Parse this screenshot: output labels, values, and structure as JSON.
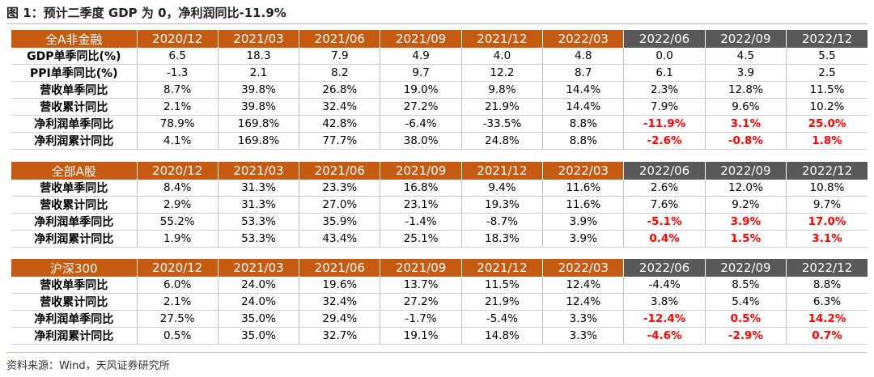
{
  "title": "图 1：预计二季度 GDP 为 0，净利润同比-11.9%",
  "source": "资料来源：Wind，天风证券研究所",
  "colors": {
    "header_actual": "#c55a11",
    "header_forecast": "#595959",
    "negative_highlight": "#ff0000"
  },
  "sections": [
    {
      "name": "全A非金融",
      "periods": [
        "2020/12",
        "2021/03",
        "2021/06",
        "2021/09",
        "2021/12",
        "2022/03",
        "2022/06",
        "2022/09",
        "2022/12"
      ],
      "rows": [
        {
          "label": "GDP单季同比(%)",
          "values": [
            "6.5",
            "18.3",
            "7.9",
            "4.9",
            "4.0",
            "4.8",
            "0.0",
            "4.5",
            "5.5"
          ]
        },
        {
          "label": "PPI单季同比(%)",
          "values": [
            "-1.3",
            "2.1",
            "8.2",
            "9.7",
            "12.2",
            "8.7",
            "6.1",
            "3.9",
            "2.5"
          ]
        },
        {
          "label": "营收单季同比",
          "values": [
            "8.7%",
            "39.8%",
            "26.8%",
            "19.0%",
            "9.8%",
            "14.4%",
            "2.3%",
            "12.8%",
            "11.5%"
          ]
        },
        {
          "label": "营收累计同比",
          "values": [
            "2.1%",
            "39.8%",
            "32.4%",
            "27.2%",
            "21.9%",
            "14.4%",
            "7.9%",
            "9.6%",
            "10.2%"
          ]
        },
        {
          "label": "净利润单季同比",
          "values": [
            "78.9%",
            "169.8%",
            "42.8%",
            "-6.4%",
            "-33.5%",
            "8.8%",
            "-11.9%",
            "3.1%",
            "25.0%"
          ],
          "forecast_highlight": true
        },
        {
          "label": "净利润累计同比",
          "values": [
            "4.1%",
            "169.8%",
            "77.7%",
            "38.0%",
            "24.8%",
            "8.8%",
            "-2.6%",
            "-0.8%",
            "1.8%"
          ],
          "forecast_highlight": true
        }
      ]
    },
    {
      "name": "全部A股",
      "periods": [
        "2020/12",
        "2021/03",
        "2021/06",
        "2021/09",
        "2021/12",
        "2022/03",
        "2022/06",
        "2022/09",
        "2022/12"
      ],
      "rows": [
        {
          "label": "营收单季同比",
          "values": [
            "8.4%",
            "31.3%",
            "23.3%",
            "16.8%",
            "9.4%",
            "11.6%",
            "2.6%",
            "12.0%",
            "10.8%"
          ]
        },
        {
          "label": "营收累计同比",
          "values": [
            "2.9%",
            "31.3%",
            "27.0%",
            "23.1%",
            "19.3%",
            "11.6%",
            "7.6%",
            "9.2%",
            "9.7%"
          ]
        },
        {
          "label": "净利润单季同比",
          "values": [
            "55.2%",
            "53.3%",
            "35.9%",
            "-1.4%",
            "-8.7%",
            "3.9%",
            "-5.1%",
            "3.9%",
            "17.0%"
          ],
          "forecast_highlight": true
        },
        {
          "label": "净利润累计同比",
          "values": [
            "1.9%",
            "53.3%",
            "43.4%",
            "25.1%",
            "18.3%",
            "3.9%",
            "0.4%",
            "1.5%",
            "3.1%"
          ],
          "forecast_highlight": true
        }
      ]
    },
    {
      "name": "沪深300",
      "periods": [
        "2020/12",
        "2021/03",
        "2021/06",
        "2021/09",
        "2021/12",
        "2022/03",
        "2022/06",
        "2022/09",
        "2022/12"
      ],
      "rows": [
        {
          "label": "营收单季同比",
          "values": [
            "6.0%",
            "24.0%",
            "19.6%",
            "13.7%",
            "11.5%",
            "12.4%",
            "-4.4%",
            "8.5%",
            "8.8%"
          ]
        },
        {
          "label": "营收累计同比",
          "values": [
            "2.1%",
            "24.0%",
            "32.4%",
            "27.2%",
            "21.9%",
            "12.4%",
            "3.8%",
            "5.4%",
            "6.3%"
          ]
        },
        {
          "label": "净利润单季同比",
          "values": [
            "27.5%",
            "35.0%",
            "29.4%",
            "-1.7%",
            "-5.4%",
            "3.3%",
            "-12.4%",
            "0.5%",
            "14.2%"
          ],
          "forecast_highlight": true
        },
        {
          "label": "净利润累计同比",
          "values": [
            "0.5%",
            "35.0%",
            "32.7%",
            "19.1%",
            "14.8%",
            "3.3%",
            "-4.6%",
            "-2.9%",
            "0.7%"
          ],
          "forecast_highlight": true
        }
      ]
    }
  ]
}
